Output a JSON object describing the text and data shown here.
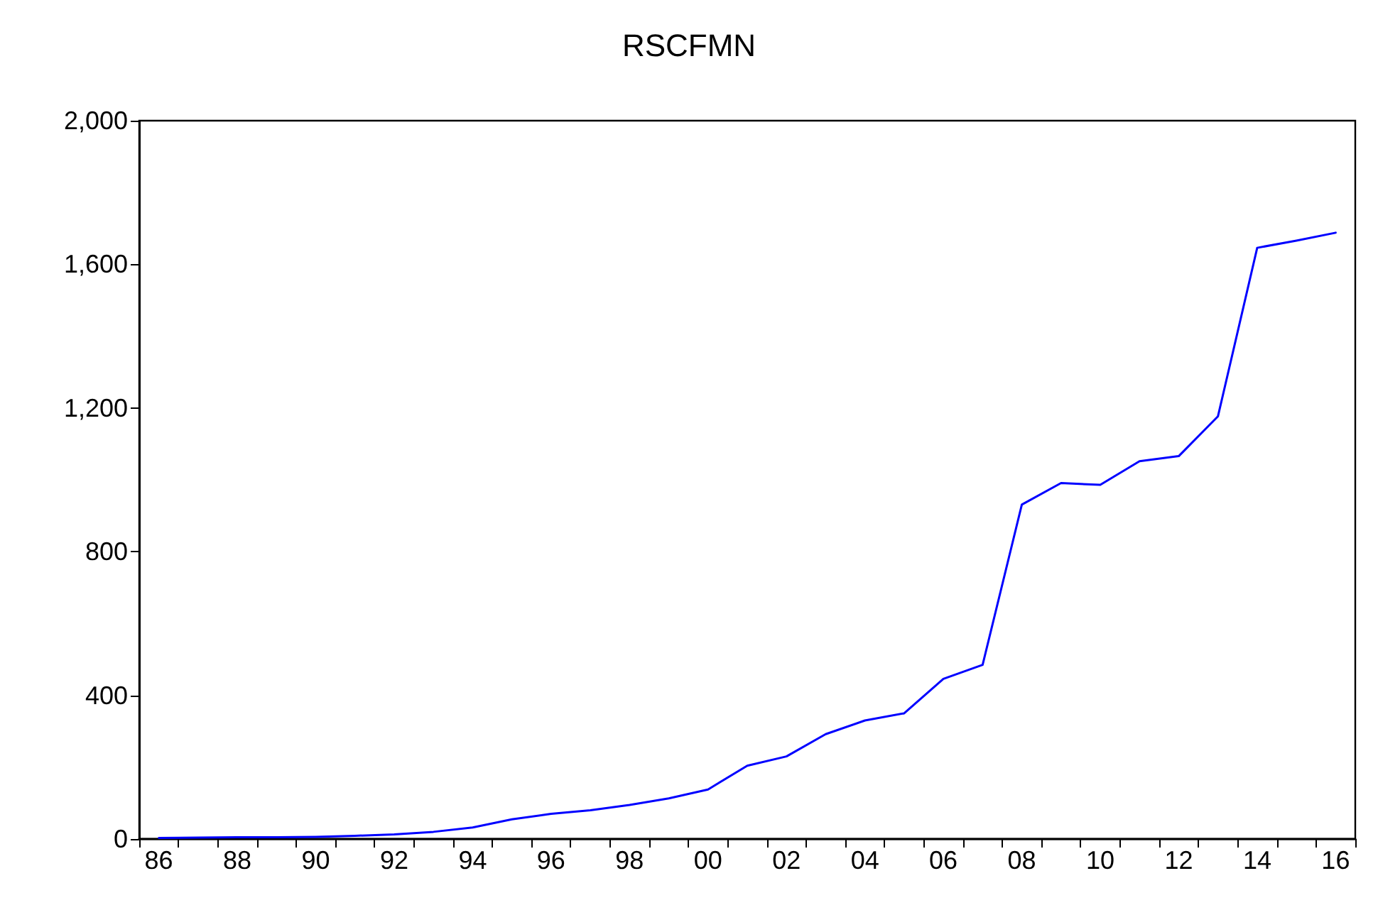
{
  "chart_data": {
    "type": "line",
    "title": "RSCFMN",
    "categories": [
      "86",
      null,
      "88",
      null,
      "90",
      null,
      "92",
      null,
      "94",
      null,
      "96",
      null,
      "98",
      null,
      "00",
      null,
      "02",
      null,
      "04",
      null,
      "06",
      null,
      "08",
      null,
      "10",
      null,
      "12",
      null,
      "14",
      null,
      "16"
    ],
    "series": [
      {
        "color": "#0000ff",
        "values": [
          3,
          4,
          5,
          5,
          6,
          9,
          13,
          20,
          32,
          55,
          70,
          80,
          95,
          113,
          138,
          204,
          230,
          292,
          330,
          350,
          446,
          485,
          931,
          991,
          986,
          1052,
          1066,
          1177,
          1646,
          1666,
          1688
        ]
      }
    ],
    "ylim": [
      0,
      2000
    ],
    "yticks": [
      {
        "value": 0,
        "label": "0"
      },
      {
        "value": 400,
        "label": "400"
      },
      {
        "value": 800,
        "label": "800"
      },
      {
        "value": 1200,
        "label": "1,200"
      },
      {
        "value": 1600,
        "label": "1,600"
      },
      {
        "value": 2000,
        "label": "2,000"
      }
    ],
    "grid": false,
    "marker": "none",
    "line_style": "solid"
  }
}
